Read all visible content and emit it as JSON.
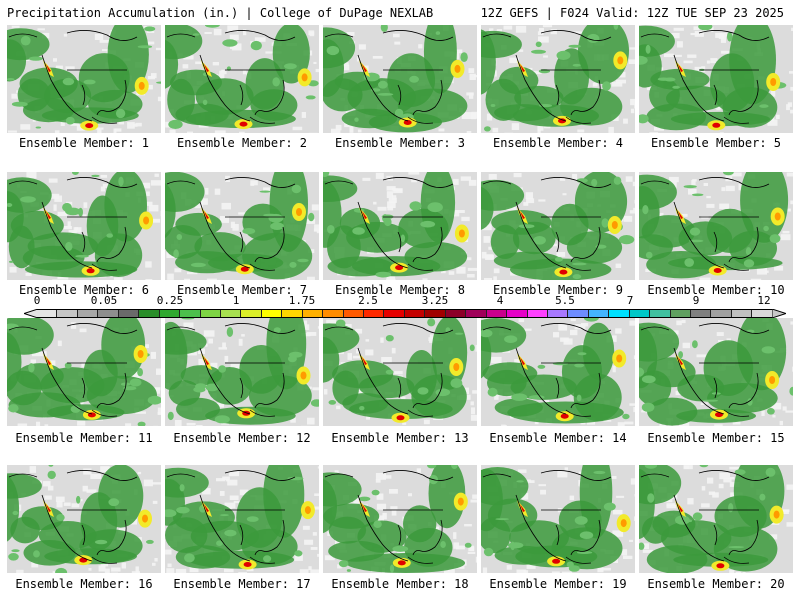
{
  "header": {
    "left": "Precipitation Accumulation (in.) | College of DuPage NEXLAB",
    "right": "12Z GEFS | F024 Valid: 12Z TUE SEP 23 2025"
  },
  "caption_prefix": "Ensemble Member: ",
  "members": [
    "1",
    "2",
    "3",
    "4",
    "5",
    "6",
    "7",
    "8",
    "9",
    "10",
    "11",
    "12",
    "13",
    "14",
    "15",
    "16",
    "17",
    "18",
    "19",
    "20"
  ],
  "colorbar": {
    "labels": [
      "0",
      "0.05",
      "0.25",
      "1",
      "1.75",
      "2.5",
      "3.25",
      "4",
      "5.5",
      "7",
      "9",
      "12"
    ],
    "colors": [
      "#e4e4e4",
      "#c6c6c6",
      "#a8a8a8",
      "#8e8e8e",
      "#6a6a6a",
      "#2a8e2a",
      "#2fa82f",
      "#4cc04c",
      "#7ed444",
      "#a8e050",
      "#dcef2a",
      "#ffff00",
      "#ffd700",
      "#ffb000",
      "#ff8c00",
      "#ff5a00",
      "#ff2a00",
      "#e60000",
      "#c40000",
      "#a00000",
      "#8c0028",
      "#a0005a",
      "#c8008c",
      "#e600c8",
      "#ff40ff",
      "#a878ff",
      "#6e8cff",
      "#44b4ff",
      "#00e0ff",
      "#00c8c8",
      "#40c0a0",
      "#60a060",
      "#808080",
      "#a0a0a0",
      "#c0c0c0",
      "#d8d8d8"
    ]
  },
  "colors": {
    "land_bg": "#dcdcdc",
    "green": "#3c9a3c",
    "light_green": "#6cc06c",
    "yellow": "#f2ea2a",
    "orange": "#ff9a00",
    "red": "#e00000",
    "border": "#000000"
  }
}
